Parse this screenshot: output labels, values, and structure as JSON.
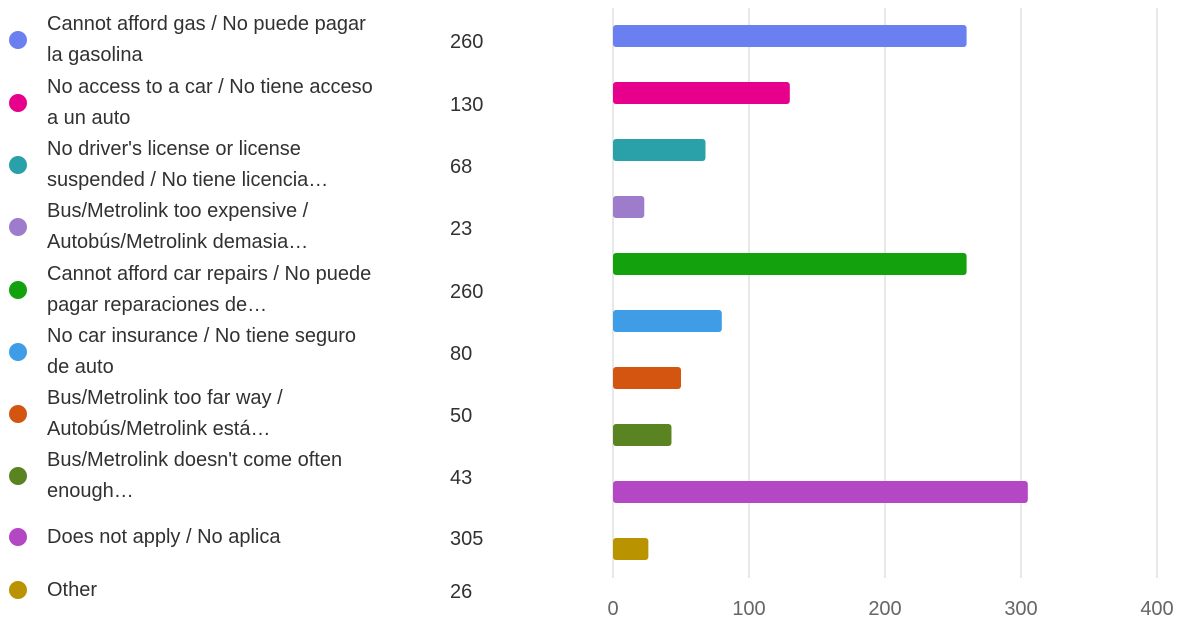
{
  "chart_data": {
    "type": "bar",
    "orientation": "horizontal",
    "categories": [
      "Cannot afford gas / No puede pagar la gasolina",
      "No access to a car / No tiene acceso a un auto",
      "No driver's license or license suspended / No tiene licencia…",
      "Bus/Metrolink too expensive / Autobús/Metrolink demasia…",
      "Cannot afford car repairs / No puede pagar reparaciones de…",
      "No car insurance / No tiene seguro de auto",
      "Bus/Metrolink too far way / Autobús/Metrolink está…",
      "Bus/Metrolink doesn't come often enough…",
      "Does not apply / No aplica",
      "Other"
    ],
    "values": [
      260,
      130,
      68,
      23,
      260,
      80,
      50,
      43,
      305,
      26
    ],
    "colors": [
      "#6b80f0",
      "#e6008c",
      "#2aa0a8",
      "#9e7ccc",
      "#13a10e",
      "#3e9de6",
      "#d4550f",
      "#5a8322",
      "#b347c4",
      "#b99400"
    ],
    "xlim": [
      0,
      400
    ],
    "xticks": [
      0,
      100,
      200,
      300,
      400
    ],
    "grid": true
  }
}
